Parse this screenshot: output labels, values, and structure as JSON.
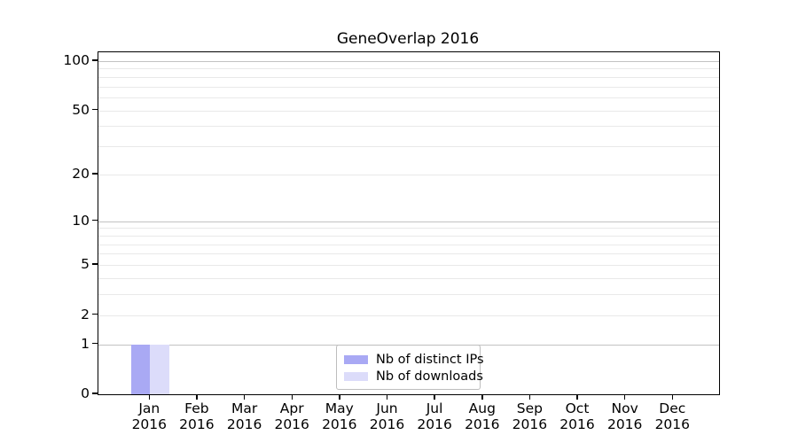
{
  "chart_data": {
    "type": "bar",
    "title": "GeneOverlap 2016",
    "categories": [
      "Jan",
      "Feb",
      "Mar",
      "Apr",
      "May",
      "Jun",
      "Jul",
      "Aug",
      "Sep",
      "Oct",
      "Nov",
      "Dec"
    ],
    "category_year": "2016",
    "series": [
      {
        "name": "Nb of distinct IPs",
        "color": "#a9a9f4",
        "values": [
          1,
          0,
          0,
          0,
          0,
          0,
          0,
          0,
          0,
          0,
          0,
          0
        ]
      },
      {
        "name": "Nb of downloads",
        "color": "#dcdcfa",
        "values": [
          1,
          0,
          0,
          0,
          0,
          0,
          0,
          0,
          0,
          0,
          0,
          0
        ]
      }
    ],
    "xlabel": "",
    "ylabel": "",
    "yscale": "log1p",
    "ylim": [
      0,
      113
    ],
    "ytick_values": [
      0,
      1,
      2,
      5,
      10,
      20,
      50,
      100
    ],
    "major_gridline_values": [
      1,
      10,
      100
    ],
    "minor_gridline_values": [
      2,
      3,
      4,
      5,
      6,
      7,
      8,
      9,
      20,
      30,
      40,
      50,
      60,
      70,
      80,
      90
    ],
    "grid": "on",
    "legend_position": "lower center",
    "colors": {
      "major_grid": "#c3c3c3",
      "minor_grid": "#e9e9e9",
      "axis": "#000000",
      "background": "#ffffff"
    }
  }
}
